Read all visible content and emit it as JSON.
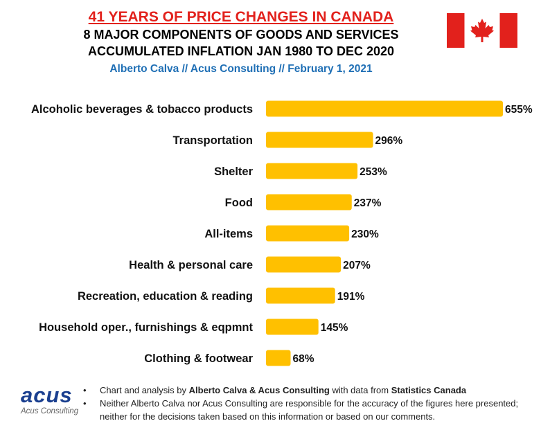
{
  "header": {
    "title": "41 YEARS OF PRICE CHANGES IN CANADA",
    "subtitle_1": "8 MAJOR COMPONENTS OF GOODS AND SERVICES",
    "subtitle_2": "ACCUMULATED INFLATION JAN 1980 TO DEC 2020",
    "author_line": "Alberto Calva // Acus Consulting // February 1, 2021"
  },
  "flag": {
    "icon": "canada-flag-icon",
    "red": "#e2211c",
    "white": "#ffffff"
  },
  "colors": {
    "bar": "#ffc000",
    "title": "#e2211c",
    "author": "#1f6fb5",
    "logo": "#1a3f8f"
  },
  "chart_data": {
    "type": "bar",
    "orientation": "horizontal",
    "categories": [
      "Alcoholic beverages & tobacco products",
      "Transportation",
      "Shelter",
      "Food",
      "All-items",
      "Health & personal care",
      "Recreation, education & reading",
      "Household oper., furnishings & eqpmnt",
      "Clothing & footwear"
    ],
    "values": [
      655,
      296,
      253,
      237,
      230,
      207,
      191,
      145,
      68
    ],
    "value_labels": [
      "655%",
      "296%",
      "253%",
      "237%",
      "230%",
      "207%",
      "191%",
      "145%",
      "68%"
    ],
    "unit": "%",
    "xlim": [
      0,
      655
    ],
    "grid": false,
    "legend": "none"
  },
  "footer": {
    "logo_word": "acus",
    "logo_sub": "Acus Consulting",
    "note_1": {
      "t1": "Chart and analysis by ",
      "b1": "Alberto Calva & Acus Consulting",
      "t2": " with data from ",
      "b2": "Statistics Canada"
    },
    "note_2": "Neither Alberto Calva nor Acus Consulting are responsible for the accuracy of the figures here presented; neither for the decisions taken based on this information or based on our comments.",
    "bullet": "•"
  }
}
